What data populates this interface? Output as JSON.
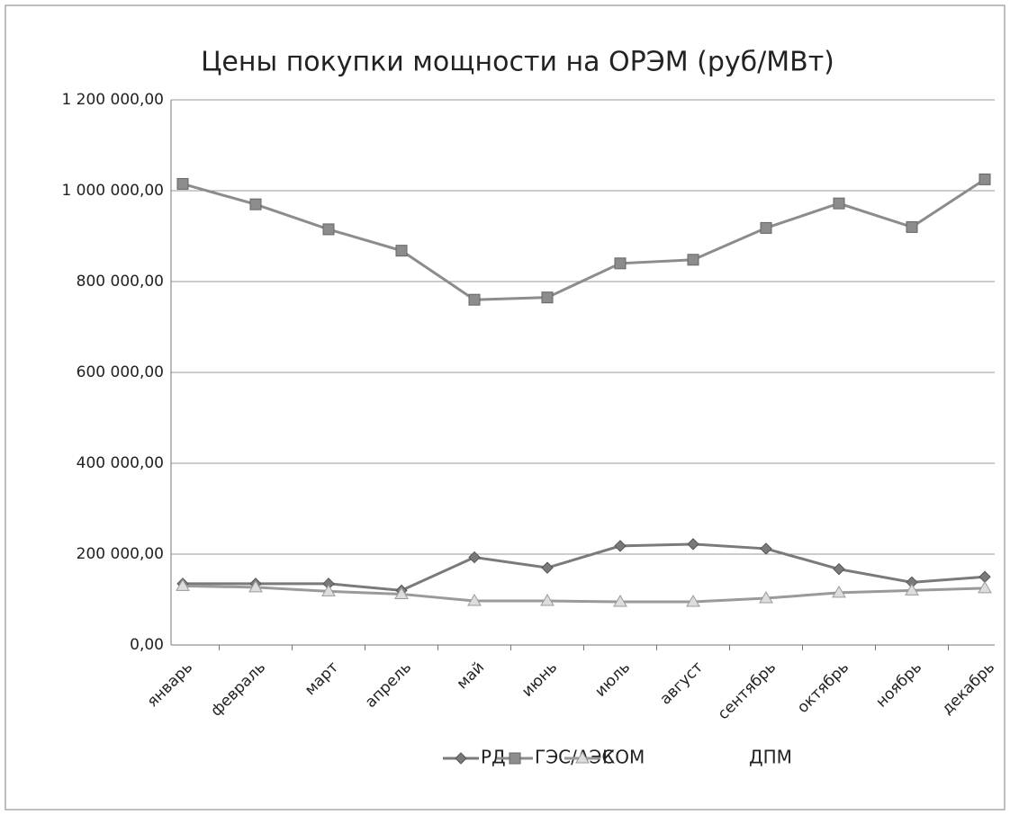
{
  "chart_data": {
    "type": "line",
    "title": "Цены покупки мощности на ОРЭМ (руб/МВт)",
    "categories": [
      "январь",
      "февраль",
      "март",
      "апрель",
      "май",
      "июнь",
      "июль",
      "август",
      "сентябрь",
      "октябрь",
      "ноябрь",
      "декабрь"
    ],
    "series": [
      {
        "name": "РД",
        "color": "#7a7a7a",
        "marker": "diamond",
        "values": [
          135000,
          135000,
          135000,
          120000,
          193000,
          170000,
          218000,
          222000,
          212000,
          167000,
          138000,
          150000
        ]
      },
      {
        "name": "ГЭС/АЭС",
        "color": "#8c8c8c",
        "marker": "square",
        "values": [
          1015000,
          970000,
          915000,
          868000,
          760000,
          765000,
          840000,
          848000,
          918000,
          972000,
          920000,
          1025000
        ]
      },
      {
        "name": "КОМ",
        "color": "#9a9a9a",
        "marker": "triangle",
        "values": [
          130000,
          127000,
          118000,
          112000,
          97000,
          97000,
          95000,
          95000,
          103000,
          115000,
          120000,
          125000
        ]
      },
      {
        "name": "ДПМ",
        "color": "#b0b0b0",
        "marker": "none",
        "values": [
          null,
          null,
          null,
          null,
          null,
          null,
          null,
          null,
          null,
          null,
          null,
          null
        ]
      }
    ],
    "ylim": [
      0,
      1200000
    ],
    "yticks": [
      {
        "value": 0,
        "label": "0,00"
      },
      {
        "value": 200000,
        "label": "200 000,00"
      },
      {
        "value": 400000,
        "label": "400 000,00"
      },
      {
        "value": 600000,
        "label": "600 000,00"
      },
      {
        "value": 800000,
        "label": "800 000,00"
      },
      {
        "value": 1000000,
        "label": "1 000 000,00"
      },
      {
        "value": 1200000,
        "label": "1 200 000,00"
      }
    ],
    "grid": true,
    "legend": "bottom"
  }
}
